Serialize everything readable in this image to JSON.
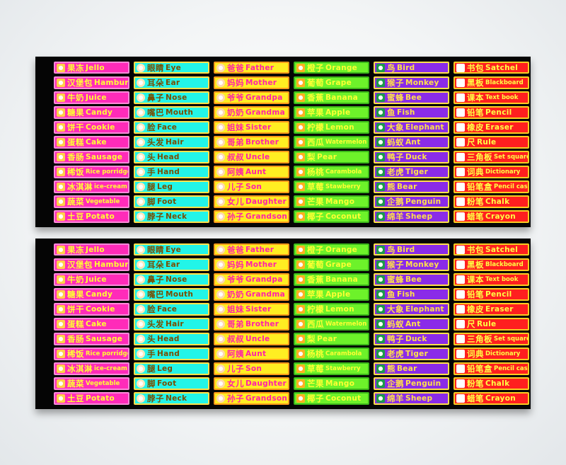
{
  "boards": [
    {
      "columns": [
        {
          "theme": "food",
          "items": [
            {
              "zh": "果冻",
              "en": "Jello",
              "icon": "jello-icon"
            },
            {
              "zh": "汉堡包",
              "en": "Hamburg",
              "icon": "hamburger-icon"
            },
            {
              "zh": "牛奶",
              "en": "Juice",
              "icon": "milk-icon"
            },
            {
              "zh": "糖果",
              "en": "Candy",
              "icon": "candy-icon"
            },
            {
              "zh": "饼干",
              "en": "Cookie",
              "icon": "cookie-icon"
            },
            {
              "zh": "蛋糕",
              "en": "Cake",
              "icon": "cake-icon"
            },
            {
              "zh": "香肠",
              "en": "Sausage",
              "icon": "sausage-icon"
            },
            {
              "zh": "稀饭",
              "en": "Rice porridge",
              "icon": "porridge-icon"
            },
            {
              "zh": "冰淇淋",
              "en": "ice-cream",
              "icon": "ice-cream-icon"
            },
            {
              "zh": "蔬菜",
              "en": "Vegetable",
              "icon": "vegetable-icon"
            },
            {
              "zh": "土豆",
              "en": "Potato",
              "icon": "potato-icon"
            }
          ]
        },
        {
          "theme": "body",
          "items": [
            {
              "zh": "眼睛",
              "en": "Eye",
              "icon": "eye-icon"
            },
            {
              "zh": "耳朵",
              "en": "Ear",
              "icon": "ear-icon"
            },
            {
              "zh": "鼻子",
              "en": "Nose",
              "icon": "nose-icon"
            },
            {
              "zh": "嘴巴",
              "en": "Mouth",
              "icon": "mouth-icon"
            },
            {
              "zh": "脸",
              "en": "Face",
              "icon": "face-icon"
            },
            {
              "zh": "头发",
              "en": "Hair",
              "icon": "hair-icon"
            },
            {
              "zh": "头",
              "en": "Head",
              "icon": "head-icon"
            },
            {
              "zh": "手",
              "en": "Hand",
              "icon": "hand-icon"
            },
            {
              "zh": "腿",
              "en": "Leg",
              "icon": "leg-icon"
            },
            {
              "zh": "脚",
              "en": "Foot",
              "icon": "foot-icon"
            },
            {
              "zh": "脖子",
              "en": "Neck",
              "icon": "neck-icon"
            }
          ]
        },
        {
          "theme": "family",
          "items": [
            {
              "zh": "爸爸",
              "en": "Father",
              "icon": "father-icon"
            },
            {
              "zh": "妈妈",
              "en": "Mother",
              "icon": "mother-icon"
            },
            {
              "zh": "爷爷",
              "en": "Grandpa",
              "icon": "grandpa-icon"
            },
            {
              "zh": "奶奶",
              "en": "Grandma",
              "icon": "grandma-icon"
            },
            {
              "zh": "姐妹",
              "en": "Sister",
              "icon": "sister-icon"
            },
            {
              "zh": "哥弟",
              "en": "Brother",
              "icon": "brother-icon"
            },
            {
              "zh": "叔叔",
              "en": "Uncle",
              "icon": "uncle-icon"
            },
            {
              "zh": "阿姨",
              "en": "Aunt",
              "icon": "aunt-icon"
            },
            {
              "zh": "儿子",
              "en": "Son",
              "icon": "son-icon"
            },
            {
              "zh": "女儿",
              "en": "Daughter",
              "icon": "daughter-icon"
            },
            {
              "zh": "孙子",
              "en": "Grandson",
              "icon": "grandson-icon"
            }
          ]
        },
        {
          "theme": "fruit",
          "items": [
            {
              "zh": "橙子",
              "en": "Orange",
              "icon": "orange-icon"
            },
            {
              "zh": "葡萄",
              "en": "Grape",
              "icon": "grape-icon"
            },
            {
              "zh": "香蕉",
              "en": "Banana",
              "icon": "banana-icon"
            },
            {
              "zh": "苹果",
              "en": "Apple",
              "icon": "apple-icon"
            },
            {
              "zh": "柠檬",
              "en": "Lemon",
              "icon": "lemon-icon"
            },
            {
              "zh": "西瓜",
              "en": "Watermelon",
              "icon": "watermelon-icon"
            },
            {
              "zh": "梨",
              "en": "Pear",
              "icon": "pear-icon"
            },
            {
              "zh": "杨桃",
              "en": "Carambola",
              "icon": "carambola-icon"
            },
            {
              "zh": "草莓",
              "en": "Stawberry",
              "icon": "strawberry-icon"
            },
            {
              "zh": "芒果",
              "en": "Mango",
              "icon": "mango-icon"
            },
            {
              "zh": "椰子",
              "en": "Coconut",
              "icon": "coconut-icon"
            }
          ]
        },
        {
          "theme": "animal",
          "items": [
            {
              "zh": "鸟",
              "en": "Bird",
              "icon": "bird-icon"
            },
            {
              "zh": "猴子",
              "en": "Monkey",
              "icon": "monkey-icon"
            },
            {
              "zh": "蜜蜂",
              "en": "Bee",
              "icon": "bee-icon"
            },
            {
              "zh": "鱼",
              "en": "Fish",
              "icon": "fish-icon"
            },
            {
              "zh": "大象",
              "en": "Elephant",
              "icon": "elephant-icon"
            },
            {
              "zh": "蚂蚁",
              "en": "Ant",
              "icon": "ant-icon"
            },
            {
              "zh": "鸭子",
              "en": "Duck",
              "icon": "duck-icon"
            },
            {
              "zh": "老虎",
              "en": "Tiger",
              "icon": "tiger-icon"
            },
            {
              "zh": "熊",
              "en": "Bear",
              "icon": "bear-icon"
            },
            {
              "zh": "企鹅",
              "en": "Penguin",
              "icon": "penguin-icon"
            },
            {
              "zh": "绵羊",
              "en": "Sheep",
              "icon": "sheep-icon"
            }
          ]
        },
        {
          "theme": "school",
          "items": [
            {
              "zh": "书包",
              "en": "Satchel",
              "icon": "satchel-icon"
            },
            {
              "zh": "黑板",
              "en": "Blackboard",
              "icon": "blackboard-icon"
            },
            {
              "zh": "课本",
              "en": "Text book",
              "icon": "textbook-icon"
            },
            {
              "zh": "铅笔",
              "en": "Pencil",
              "icon": "pencil-icon"
            },
            {
              "zh": "橡皮",
              "en": "Eraser",
              "icon": "eraser-icon"
            },
            {
              "zh": "尺",
              "en": "Rule",
              "icon": "ruler-icon"
            },
            {
              "zh": "三角板",
              "en": "Set square",
              "icon": "set-square-icon"
            },
            {
              "zh": "词典",
              "en": "Dictionary",
              "icon": "dictionary-icon"
            },
            {
              "zh": "铅笔盒",
              "en": "Pencil case",
              "icon": "pencil-case-icon"
            },
            {
              "zh": "粉笔",
              "en": "Chalk",
              "icon": "chalk-icon"
            },
            {
              "zh": "蜡笔",
              "en": "Crayon",
              "icon": "crayon-icon"
            }
          ]
        }
      ]
    },
    {
      "columns": [
        {
          "theme": "food",
          "items": [
            {
              "zh": "果冻",
              "en": "Jello",
              "icon": "jello-icon"
            },
            {
              "zh": "汉堡包",
              "en": "Hamburg",
              "icon": "hamburger-icon"
            },
            {
              "zh": "牛奶",
              "en": "Juice",
              "icon": "milk-icon"
            },
            {
              "zh": "糖果",
              "en": "Candy",
              "icon": "candy-icon"
            },
            {
              "zh": "饼干",
              "en": "Cookie",
              "icon": "cookie-icon"
            },
            {
              "zh": "蛋糕",
              "en": "Cake",
              "icon": "cake-icon"
            },
            {
              "zh": "香肠",
              "en": "Sausage",
              "icon": "sausage-icon"
            },
            {
              "zh": "稀饭",
              "en": "Rice porridge",
              "icon": "porridge-icon"
            },
            {
              "zh": "冰淇淋",
              "en": "ice-cream",
              "icon": "ice-cream-icon"
            },
            {
              "zh": "蔬菜",
              "en": "Vegetable",
              "icon": "vegetable-icon"
            },
            {
              "zh": "土豆",
              "en": "Potato",
              "icon": "potato-icon"
            }
          ]
        },
        {
          "theme": "body",
          "items": [
            {
              "zh": "眼睛",
              "en": "Eye",
              "icon": "eye-icon"
            },
            {
              "zh": "耳朵",
              "en": "Ear",
              "icon": "ear-icon"
            },
            {
              "zh": "鼻子",
              "en": "Nose",
              "icon": "nose-icon"
            },
            {
              "zh": "嘴巴",
              "en": "Mouth",
              "icon": "mouth-icon"
            },
            {
              "zh": "脸",
              "en": "Face",
              "icon": "face-icon"
            },
            {
              "zh": "头发",
              "en": "Hair",
              "icon": "hair-icon"
            },
            {
              "zh": "头",
              "en": "Head",
              "icon": "head-icon"
            },
            {
              "zh": "手",
              "en": "Hand",
              "icon": "hand-icon"
            },
            {
              "zh": "腿",
              "en": "Leg",
              "icon": "leg-icon"
            },
            {
              "zh": "脚",
              "en": "Foot",
              "icon": "foot-icon"
            },
            {
              "zh": "脖子",
              "en": "Neck",
              "icon": "neck-icon"
            }
          ]
        },
        {
          "theme": "family",
          "items": [
            {
              "zh": "爸爸",
              "en": "Father",
              "icon": "father-icon"
            },
            {
              "zh": "妈妈",
              "en": "Mother",
              "icon": "mother-icon"
            },
            {
              "zh": "爷爷",
              "en": "Grandpa",
              "icon": "grandpa-icon"
            },
            {
              "zh": "奶奶",
              "en": "Grandma",
              "icon": "grandma-icon"
            },
            {
              "zh": "姐妹",
              "en": "Sister",
              "icon": "sister-icon"
            },
            {
              "zh": "哥弟",
              "en": "Brother",
              "icon": "brother-icon"
            },
            {
              "zh": "叔叔",
              "en": "Uncle",
              "icon": "uncle-icon"
            },
            {
              "zh": "阿姨",
              "en": "Aunt",
              "icon": "aunt-icon"
            },
            {
              "zh": "儿子",
              "en": "Son",
              "icon": "son-icon"
            },
            {
              "zh": "女儿",
              "en": "Daughter",
              "icon": "daughter-icon"
            },
            {
              "zh": "孙子",
              "en": "Grandson",
              "icon": "grandson-icon"
            }
          ]
        },
        {
          "theme": "fruit",
          "items": [
            {
              "zh": "橙子",
              "en": "Orange",
              "icon": "orange-icon"
            },
            {
              "zh": "葡萄",
              "en": "Grape",
              "icon": "grape-icon"
            },
            {
              "zh": "香蕉",
              "en": "Banana",
              "icon": "banana-icon"
            },
            {
              "zh": "苹果",
              "en": "Apple",
              "icon": "apple-icon"
            },
            {
              "zh": "柠檬",
              "en": "Lemon",
              "icon": "lemon-icon"
            },
            {
              "zh": "西瓜",
              "en": "Watermelon",
              "icon": "watermelon-icon"
            },
            {
              "zh": "梨",
              "en": "Pear",
              "icon": "pear-icon"
            },
            {
              "zh": "杨桃",
              "en": "Carambola",
              "icon": "carambola-icon"
            },
            {
              "zh": "草莓",
              "en": "Stawberry",
              "icon": "strawberry-icon"
            },
            {
              "zh": "芒果",
              "en": "Mango",
              "icon": "mango-icon"
            },
            {
              "zh": "椰子",
              "en": "Coconut",
              "icon": "coconut-icon"
            }
          ]
        },
        {
          "theme": "animal",
          "items": [
            {
              "zh": "鸟",
              "en": "Bird",
              "icon": "bird-icon"
            },
            {
              "zh": "猴子",
              "en": "Monkey",
              "icon": "monkey-icon"
            },
            {
              "zh": "蜜蜂",
              "en": "Bee",
              "icon": "bee-icon"
            },
            {
              "zh": "鱼",
              "en": "Fish",
              "icon": "fish-icon"
            },
            {
              "zh": "大象",
              "en": "Elephant",
              "icon": "elephant-icon"
            },
            {
              "zh": "蚂蚁",
              "en": "Ant",
              "icon": "ant-icon"
            },
            {
              "zh": "鸭子",
              "en": "Duck",
              "icon": "duck-icon"
            },
            {
              "zh": "老虎",
              "en": "Tiger",
              "icon": "tiger-icon"
            },
            {
              "zh": "熊",
              "en": "Bear",
              "icon": "bear-icon"
            },
            {
              "zh": "企鹅",
              "en": "Penguin",
              "icon": "penguin-icon"
            },
            {
              "zh": "绵羊",
              "en": "Sheep",
              "icon": "sheep-icon"
            }
          ]
        },
        {
          "theme": "school",
          "items": [
            {
              "zh": "书包",
              "en": "Satchel",
              "icon": "satchel-icon"
            },
            {
              "zh": "黑板",
              "en": "Blackboard",
              "icon": "blackboard-icon"
            },
            {
              "zh": "课本",
              "en": "Text book",
              "icon": "textbook-icon"
            },
            {
              "zh": "铅笔",
              "en": "Pencil",
              "icon": "pencil-icon"
            },
            {
              "zh": "橡皮",
              "en": "Eraser",
              "icon": "eraser-icon"
            },
            {
              "zh": "尺",
              "en": "Rule",
              "icon": "ruler-icon"
            },
            {
              "zh": "三角板",
              "en": "Set square",
              "icon": "set-square-icon"
            },
            {
              "zh": "词典",
              "en": "Dictionary",
              "icon": "dictionary-icon"
            },
            {
              "zh": "铅笔盒",
              "en": "Pencil case",
              "icon": "pencil-case-icon"
            },
            {
              "zh": "粉笔",
              "en": "Chalk",
              "icon": "chalk-icon"
            },
            {
              "zh": "蜡笔",
              "en": "Crayon",
              "icon": "crayon-icon"
            }
          ]
        }
      ]
    }
  ],
  "colors": {
    "board_background": "#050505",
    "food": "#ff2bb9",
    "body": "#22f5e8",
    "family": "#ffee22",
    "fruit": "#6df22a",
    "animal": "#8a2be8",
    "school": "#ff1f1f"
  }
}
